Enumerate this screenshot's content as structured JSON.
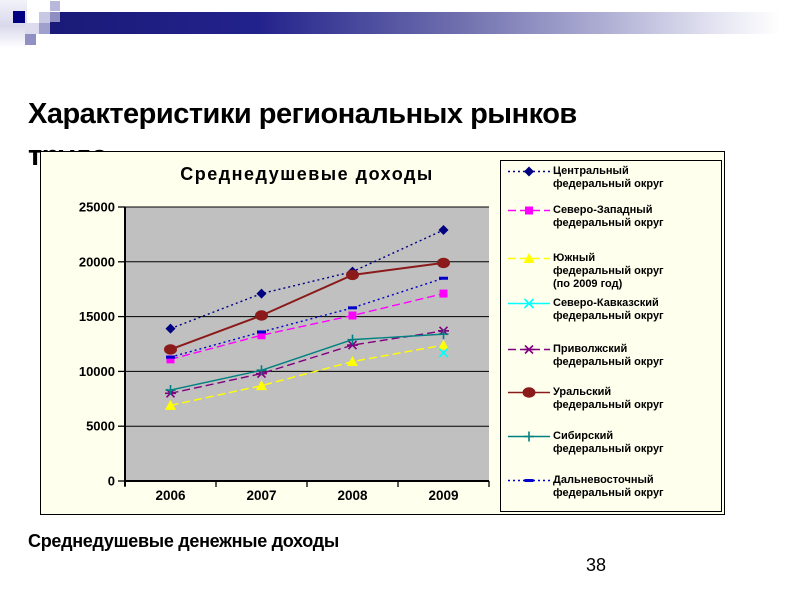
{
  "slide": {
    "title": "Характеристики региональных рынков\nтруда",
    "caption": "Среднедушевые денежные доходы",
    "page_number": "38"
  },
  "chart_data": {
    "type": "line",
    "title": "Среднедушевые доходы",
    "categories": [
      "2006",
      "2007",
      "2008",
      "2009"
    ],
    "xlabel": "",
    "ylabel": "",
    "ylim": [
      0,
      25000
    ],
    "ytick_step": 5000,
    "grid": true,
    "legend_position": "right",
    "plot_bg_color": "#C0C0C0",
    "chart_bg_color": "#FFFFEE",
    "series": [
      {
        "name": "Центральный\nфедеральный округ",
        "color": "#000080",
        "marker": "diamond",
        "line_style": "dotted",
        "values": [
          13900,
          17100,
          19100,
          22900
        ]
      },
      {
        "name": "Северо-Западный\nфедеральный округ",
        "color": "#FF00FF",
        "marker": "square",
        "line_style": "dashed",
        "values": [
          11100,
          13300,
          15100,
          17100
        ]
      },
      {
        "name": "Южный\nфедеральный округ\n(по 2009 год)",
        "color": "#FFFF00",
        "marker": "triangle",
        "line_style": "dashed",
        "values": [
          6900,
          8700,
          10900,
          12400
        ]
      },
      {
        "name": "Северо-Кавказский\nфедеральный округ",
        "color": "#00FFFF",
        "marker": "x",
        "line_style": "none",
        "values": [
          null,
          null,
          null,
          11700
        ]
      },
      {
        "name": "Приволжский\nфедеральный округ",
        "color": "#800080",
        "marker": "asterisk",
        "line_style": "dashed",
        "values": [
          8000,
          9800,
          12400,
          13700
        ]
      },
      {
        "name": "Уральский\nфедеральный округ",
        "color": "#8B1A1A",
        "marker": "circle",
        "line_style": "solid",
        "values": [
          12000,
          15100,
          18800,
          19900
        ]
      },
      {
        "name": "Сибирский\nфедеральный округ",
        "color": "#008080",
        "marker": "plus",
        "line_style": "solid",
        "values": [
          8300,
          10100,
          12900,
          13400
        ]
      },
      {
        "name": "Дальневосточный\nфедеральный округ",
        "color": "#0000CC",
        "marker": "dash",
        "line_style": "dotted",
        "values": [
          11300,
          13600,
          15800,
          18500
        ]
      }
    ]
  }
}
